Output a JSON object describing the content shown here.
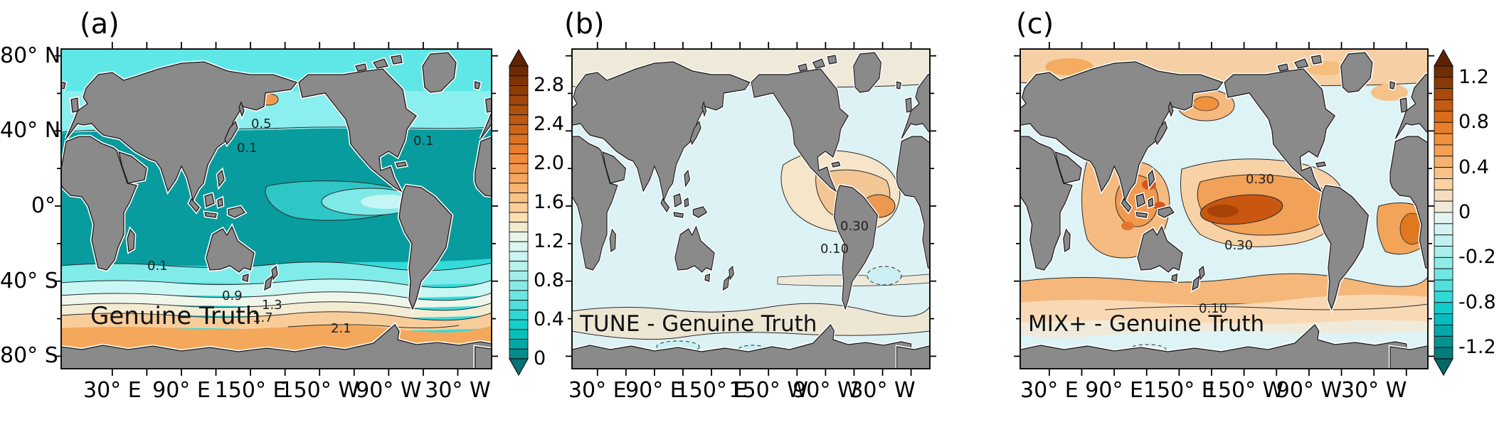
{
  "figure": {
    "background": "#FFFFFF",
    "land_color": "#8A8A8A",
    "coastline_color": "#1A1A1A"
  },
  "axes": {
    "x_labels": [
      "30° E",
      "90° E",
      "150° E",
      "150° W",
      "90° W",
      "30° W"
    ],
    "y_labels": [
      "80° N",
      "40° N",
      "0°",
      "40° S",
      "80° S"
    ]
  },
  "panels": {
    "a": {
      "label": "(a)",
      "title": "Genuine Truth",
      "contour_labels": [
        "0.5",
        "0.1",
        "0.1",
        "0.1",
        "0.9",
        "1.3",
        "1.7",
        "2.1"
      ],
      "colorbar": {
        "tick_labels": [
          "2.8",
          "2.4",
          "2.0",
          "1.6",
          "1.2",
          "0.8",
          "0.4",
          "0"
        ],
        "arrow_top": "#5E2300",
        "arrow_bottom": "#037272",
        "segments": [
          "#6E2A02",
          "#7E3304",
          "#8E3C08",
          "#9E460C",
          "#AE5010",
          "#BE5A14",
          "#CE661A",
          "#DC7222",
          "#E87E2E",
          "#F08B3E",
          "#F49850",
          "#F6A660",
          "#F8B472",
          "#FAC284",
          "#FBD098",
          "#FCDEB0",
          "#F3E9CF",
          "#EAF3E8",
          "#DCF6F2",
          "#CBF4F1",
          "#B7F1EE",
          "#A1EEEA",
          "#88EAE6",
          "#6DE5E1",
          "#50DFDB",
          "#32D8D4",
          "#18CEC9",
          "#0ABEBA",
          "#06A6A4",
          "#048C8C"
        ]
      }
    },
    "b": {
      "label": "(b)",
      "title": "TUNE - Genuine Truth",
      "contour_labels": [
        "0.30",
        "0.10"
      ]
    },
    "c": {
      "label": "(c)",
      "title": "MIX+ - Genuine Truth",
      "contour_labels": [
        "0.30",
        "0.30",
        "0.10"
      ],
      "colorbar": {
        "tick_labels": [
          "1.2",
          "0.8",
          "0.4",
          "0",
          "-0.2",
          "-0.8",
          "-1.2"
        ],
        "arrow_top": "#5E2300",
        "arrow_bottom": "#036A6A",
        "segments": [
          "#6E2D04",
          "#8A3A06",
          "#A84A0C",
          "#C25A12",
          "#DA6C1A",
          "#E87F2A",
          "#F0903C",
          "#F4A155",
          "#F6B26E",
          "#F8C288",
          "#FAD2A2",
          "#F4DDBE",
          "#EFE9D8",
          "#E4F4F0",
          "#D2F4F2",
          "#BFF2F0",
          "#A9EFEC",
          "#8FEBE8",
          "#72E6E3",
          "#52E0DD",
          "#30D8D6",
          "#12CCCB",
          "#06BCBC",
          "#04A8A8",
          "#049292",
          "#047C7C"
        ]
      }
    }
  },
  "chart_data": [
    {
      "type": "heatmap",
      "subtype": "filled-contour global map",
      "panel": "(a)",
      "title": "Genuine Truth",
      "x_tick_labels": [
        "30° E",
        "90° E",
        "150° E",
        "150° W",
        "90° W",
        "30° W"
      ],
      "y_tick_labels": [
        "80° N",
        "40° N",
        "0°",
        "40° S",
        "80° S"
      ],
      "colorbar_ticks": [
        2.8,
        2.4,
        2.0,
        1.6,
        1.2,
        0.8,
        0.4,
        0
      ],
      "colorbar_range_shown": [
        0,
        3.0
      ],
      "contour_line_labels": [
        0.1,
        0.5,
        0.9,
        1.3,
        1.7,
        2.1
      ],
      "estimated_field_values": [
        {
          "region": "tropical and subtropical oceans (30N-35S)",
          "approx_value": "0.0-0.3 (dark teal)"
        },
        {
          "region": "eastern equatorial Pacific wedge",
          "approx_value": "0.5-1.1 (light cyan)"
        },
        {
          "region": "northern mid/high-latitude oceans and Arctic",
          "approx_value": "0.3-0.7 (cyan)"
        },
        {
          "region": "northwest Pacific spot near Kamchatka",
          "approx_value": "~2.0 (orange)"
        },
        {
          "region": "Southern Ocean 40S-55S",
          "approx_value": "0.5-1.6 (cyan to cream)"
        },
        {
          "region": "Southern Ocean 55S-70S",
          "approx_value": "1.7-2.3 (orange)"
        }
      ]
    },
    {
      "type": "heatmap",
      "subtype": "filled-contour global difference map",
      "panel": "(b)",
      "title": "TUNE - Genuine Truth",
      "x_tick_labels": [
        "30° E",
        "90° E",
        "150° E",
        "150° W",
        "90° W",
        "30° W"
      ],
      "contour_line_labels": [
        0.3,
        0.1
      ],
      "estimated_field_values": [
        {
          "region": "most of the global ocean",
          "approx_value": "-0.1 to 0.1 (pale blue)"
        },
        {
          "region": "eastern tropical Pacific",
          "approx_value": "0.1-0.5 (orange, labeled 0.10 and 0.30)"
        },
        {
          "region": "Arctic band",
          "approx_value": "0.0-0.2 (cream)"
        },
        {
          "region": "Southern Ocean band ~50S-60S",
          "approx_value": "0.0-0.2 (beige)"
        }
      ]
    },
    {
      "type": "heatmap",
      "subtype": "filled-contour global difference map",
      "panel": "(c)",
      "title": "MIX+ - Genuine Truth",
      "x_tick_labels": [
        "30° E",
        "90° E",
        "150° E",
        "150° W",
        "90° W",
        "30° W"
      ],
      "colorbar_ticks": [
        1.2,
        0.8,
        0.4,
        0,
        -0.2,
        -0.8,
        -1.2
      ],
      "colorbar_range_shown": [
        -1.3,
        1.3
      ],
      "contour_line_labels": [
        0.3,
        0.3,
        0.1
      ],
      "estimated_field_values": [
        {
          "region": "central/eastern equatorial Pacific core",
          "approx_value": "0.5-1.0 (dark orange)"
        },
        {
          "region": "Indian Ocean and maritime continent",
          "approx_value": "0.3-0.8 (orange with red spots)"
        },
        {
          "region": "Arctic band",
          "approx_value": "0.2-0.5 (light orange)"
        },
        {
          "region": "South Atlantic",
          "approx_value": "0.4-0.8 (orange)"
        },
        {
          "region": "Southern Ocean 40S-60S",
          "approx_value": "0.2-0.5 (light orange)"
        },
        {
          "region": "North Pacific / North Atlantic centers and near Antarctica",
          "approx_value": "-0.1 to 0.1 (pale blue)"
        }
      ]
    }
  ]
}
